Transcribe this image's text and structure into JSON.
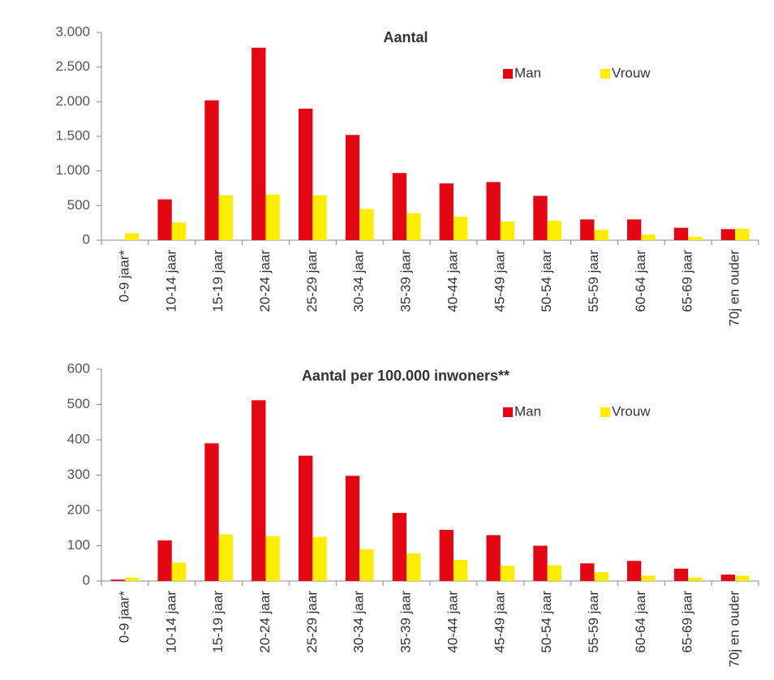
{
  "chart_data": [
    {
      "type": "bar",
      "title": "Aantal",
      "categories": [
        "0-9 jaar*",
        "10-14 jaar",
        "15-19 jaar",
        "20-24 jaar",
        "25-29 jaar",
        "30-34 jaar",
        "35-39 jaar",
        "40-44 jaar",
        "45-49 jaar",
        "50-54 jaar",
        "55-59 jaar",
        "60-64 jaar",
        "65-69 jaar",
        "70j en ouder"
      ],
      "series": [
        {
          "name": "Man",
          "color": "#e30613",
          "values": [
            0,
            590,
            2020,
            2780,
            1900,
            1520,
            970,
            820,
            840,
            640,
            300,
            300,
            180,
            160
          ]
        },
        {
          "name": "Vrouw",
          "color": "#ffed00",
          "values": [
            100,
            255,
            650,
            660,
            650,
            450,
            390,
            340,
            270,
            280,
            150,
            80,
            50,
            165
          ]
        }
      ],
      "ylim": [
        0,
        3000
      ],
      "yticks": [
        0,
        500,
        {
          "value": 1000,
          "label": "1.000"
        },
        {
          "value": 1500,
          "label": "1.500"
        },
        {
          "value": 2000,
          "label": "2.000"
        },
        {
          "value": 2500,
          "label": "2.500"
        },
        {
          "value": 3000,
          "label": "3.000"
        }
      ],
      "legend": "upper right",
      "grid": false
    },
    {
      "type": "bar",
      "title": "Aantal per 100.000 inwoners**",
      "categories": [
        "0-9 jaar*",
        "10-14 jaar",
        "15-19 jaar",
        "20-24 jaar",
        "25-29 jaar",
        "30-34 jaar",
        "35-39 jaar",
        "40-44 jaar",
        "45-49 jaar",
        "50-54 jaar",
        "55-59 jaar",
        "60-64 jaar",
        "65-69 jaar",
        "70j en ouder"
      ],
      "series": [
        {
          "name": "Man",
          "color": "#e30613",
          "values": [
            4,
            115,
            390,
            512,
            355,
            298,
            193,
            145,
            130,
            100,
            50,
            57,
            35,
            18
          ]
        },
        {
          "name": "Vrouw",
          "color": "#ffed00",
          "values": [
            10,
            52,
            132,
            127,
            125,
            90,
            78,
            60,
            43,
            45,
            25,
            15,
            10,
            15
          ]
        }
      ],
      "ylim": [
        0,
        600
      ],
      "yticks": [
        0,
        100,
        200,
        300,
        400,
        500,
        600
      ],
      "legend": "upper right",
      "grid": false
    }
  ]
}
